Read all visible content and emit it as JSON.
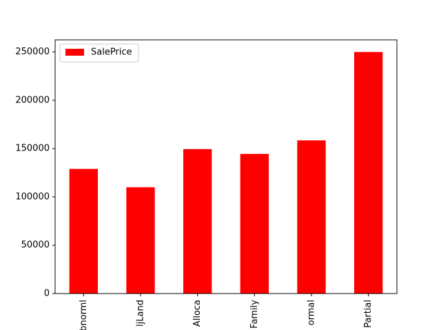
{
  "chart_data": {
    "type": "bar",
    "categories": [
      "Abnorml",
      "AdjLand",
      "Alloca",
      "Family",
      "Normal",
      "Partial"
    ],
    "category_labels_visible": [
      "bnorml",
      "ljLand",
      "Alloca",
      "Family",
      "ormal",
      "Partial"
    ],
    "series": [
      {
        "name": "SalePrice",
        "values": [
          129000,
          110000,
          149500,
          144500,
          158500,
          250000
        ]
      }
    ],
    "xlabel": "",
    "ylabel": "",
    "ylim": [
      0,
      262500
    ],
    "yticks": [
      0,
      50000,
      100000,
      150000,
      200000,
      250000
    ],
    "ytick_labels": [
      "0",
      "50000",
      "100000",
      "150000",
      "200000",
      "250000"
    ],
    "grid": false,
    "legend_position": "upper-left",
    "colors": {
      "bar": "#ff0000",
      "axes": "#000000",
      "background": "#ffffff"
    }
  }
}
